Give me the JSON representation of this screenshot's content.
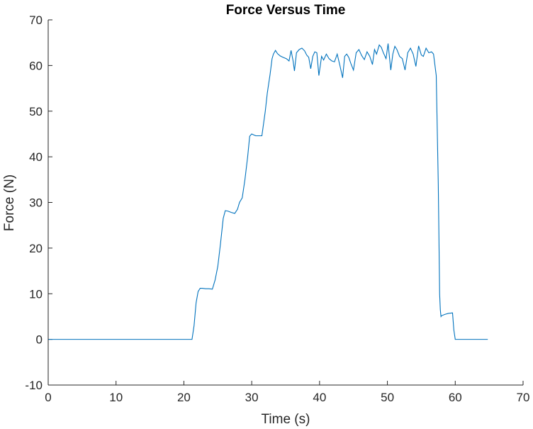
{
  "chart_data": {
    "type": "line",
    "title": "Force Versus Time",
    "xlabel": "Time (s)",
    "ylabel": "Force (N)",
    "xlim": [
      0,
      70
    ],
    "ylim": [
      -10,
      70
    ],
    "xticks": [
      0,
      10,
      20,
      30,
      40,
      50,
      60,
      70
    ],
    "yticks": [
      -10,
      0,
      10,
      20,
      30,
      40,
      50,
      60,
      70
    ],
    "xtick_labels": [
      "0",
      "10",
      "20",
      "30",
      "40",
      "50",
      "60",
      "70"
    ],
    "ytick_labels": [
      "-10",
      "0",
      "10",
      "20",
      "30",
      "40",
      "50",
      "60",
      "70"
    ],
    "grid": false,
    "series": [
      {
        "color": "#0072BD",
        "x": [
          0,
          5,
          10,
          15,
          20,
          21.2,
          21.5,
          21.8,
          22.1,
          22.4,
          22.7,
          23.2,
          23.7,
          24.2,
          24.6,
          25.0,
          25.4,
          25.8,
          26.1,
          26.5,
          27.0,
          27.5,
          27.9,
          28.2,
          28.6,
          29.0,
          29.4,
          29.7,
          30.0,
          30.3,
          30.6,
          31.0,
          31.5,
          32.0,
          32.3,
          32.7,
          33.0,
          33.2,
          33.5,
          33.8,
          34.2,
          34.6,
          35.1,
          35.5,
          35.8,
          36.1,
          36.3,
          36.6,
          37.0,
          37.4,
          37.8,
          38.1,
          38.4,
          38.7,
          39.0,
          39.3,
          39.6,
          39.9,
          40.3,
          40.6,
          41.0,
          41.4,
          41.8,
          42.2,
          42.6,
          43.0,
          43.4,
          43.7,
          44.0,
          44.3,
          44.6,
          45.0,
          45.4,
          45.8,
          46.2,
          46.6,
          47.0,
          47.4,
          47.8,
          48.1,
          48.4,
          48.8,
          49.1,
          49.4,
          49.8,
          50.1,
          50.5,
          50.8,
          51.1,
          51.4,
          51.8,
          52.2,
          52.6,
          53.0,
          53.4,
          53.8,
          54.2,
          54.6,
          55.0,
          55.3,
          55.7,
          56.1,
          56.5,
          56.8,
          57.2,
          57.5,
          57.7,
          57.8,
          57.9,
          58.0,
          58.5,
          59.0,
          59.6,
          59.8,
          60.0,
          60.4,
          61,
          62,
          63,
          64,
          64.8
        ],
        "y": [
          0,
          0,
          0,
          0,
          0,
          0,
          3,
          8,
          10.5,
          11.2,
          11.2,
          11.1,
          11.1,
          11.0,
          13,
          16,
          21,
          26.5,
          28.2,
          28.1,
          27.8,
          27.6,
          28.5,
          30,
          31,
          35,
          40,
          44.5,
          45.0,
          44.8,
          44.6,
          44.6,
          44.6,
          50,
          54,
          58,
          61.5,
          62.5,
          63.3,
          62.6,
          62.1,
          61.8,
          61.5,
          61.0,
          63.3,
          61.0,
          58.8,
          62.8,
          63.5,
          63.8,
          63.2,
          62.3,
          61.8,
          59.3,
          62.0,
          63.0,
          62.8,
          57.8,
          62.0,
          61.2,
          62.5,
          61.5,
          61.0,
          60.8,
          62.5,
          60.0,
          57.3,
          62.0,
          62.5,
          61.8,
          60.5,
          59.0,
          62.8,
          63.5,
          62.2,
          61.3,
          63.0,
          62.0,
          60.2,
          63.5,
          62.5,
          64.5,
          64.0,
          62.8,
          61.5,
          64.8,
          59.0,
          62.5,
          64.2,
          63.5,
          62.0,
          61.5,
          59.0,
          62.8,
          63.8,
          62.5,
          59.8,
          64.3,
          62.3,
          62.0,
          63.8,
          62.8,
          63.0,
          62.5,
          57.8,
          34,
          10,
          6.5,
          5.0,
          5.2,
          5.5,
          5.7,
          5.8,
          2.0,
          0.0,
          0,
          0,
          0,
          0,
          0,
          0
        ]
      }
    ]
  }
}
